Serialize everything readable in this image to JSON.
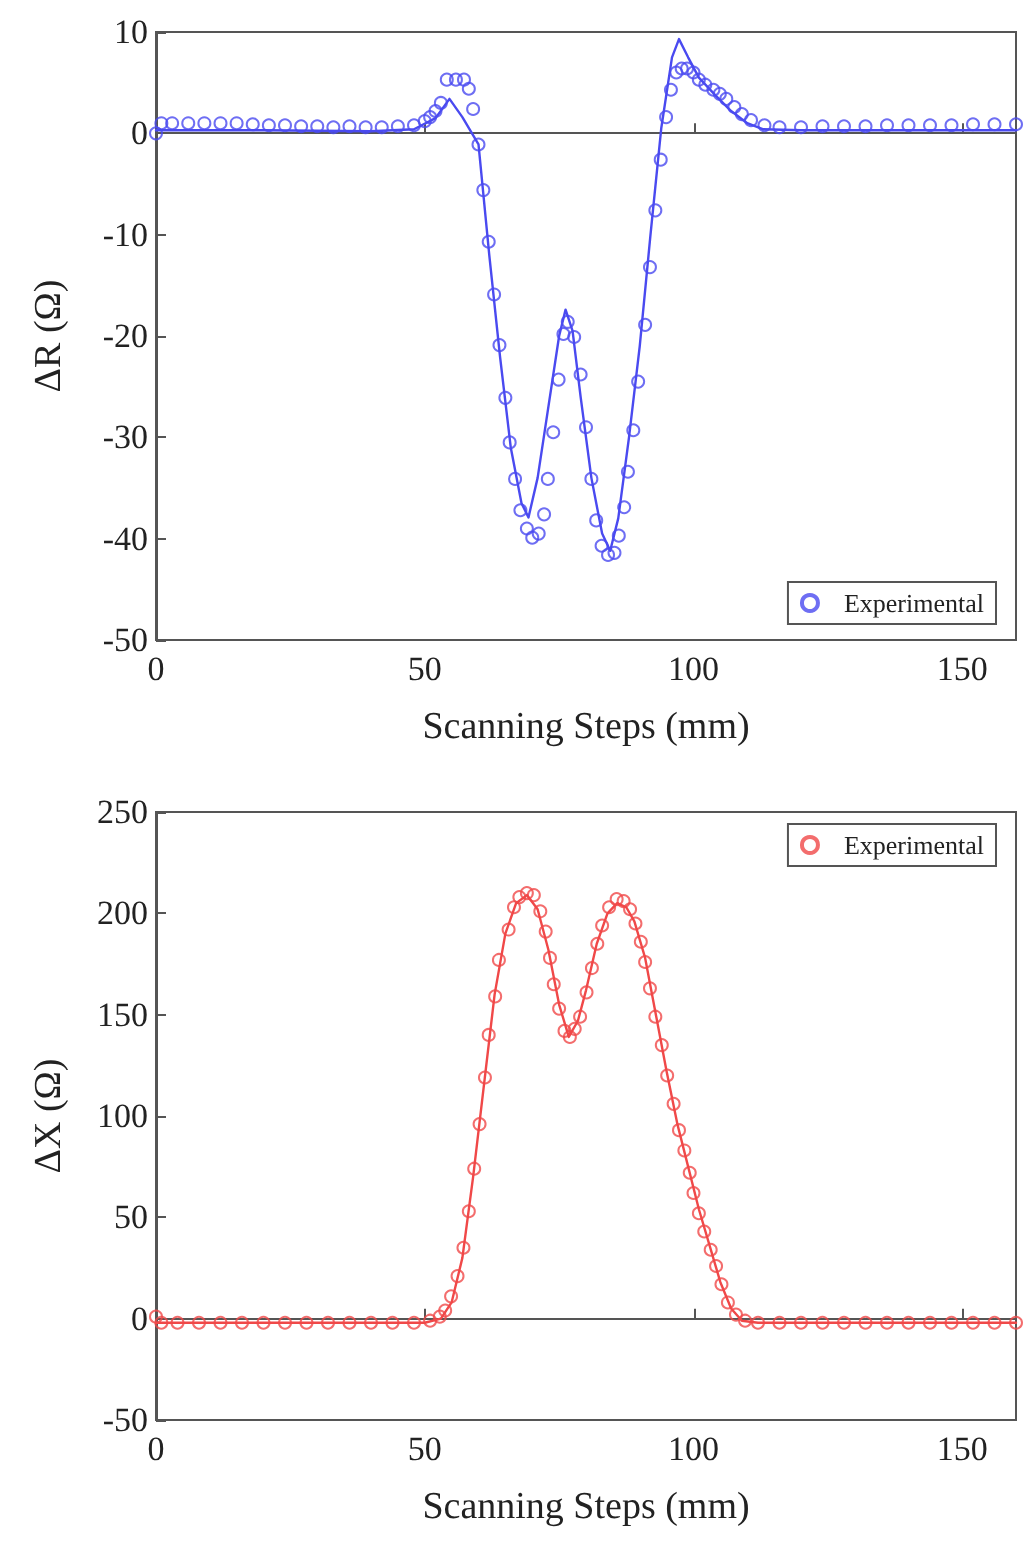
{
  "chart_data": [
    {
      "type": "line",
      "xlabel": "Scanning Steps (mm)",
      "ylabel": "ΔR (Ω)",
      "xlim": [
        0,
        160
      ],
      "xticks": [
        0,
        50,
        100,
        150
      ],
      "ylim": [
        -50,
        10
      ],
      "yticks": [
        -50,
        -40,
        -30,
        -20,
        -10,
        0,
        10
      ],
      "legend": "bottom right",
      "series": [
        {
          "color": "#4a4af0",
          "line_style": "solid",
          "marker": "none",
          "x": [
            0,
            20,
            40,
            48,
            52,
            54.6,
            57,
            60,
            62,
            64,
            66,
            68,
            69.3,
            71,
            73,
            75,
            76.2,
            77.5,
            79,
            81,
            83,
            84.5,
            86,
            88,
            90,
            92,
            94,
            96,
            97.3,
            99,
            101,
            104,
            107,
            110,
            113,
            120,
            160
          ],
          "values": [
            0.3,
            0.3,
            0.2,
            0.4,
            1.5,
            3.4,
            1.6,
            -1.1,
            -12,
            -22,
            -31,
            -36.5,
            -37.9,
            -34,
            -27,
            -20,
            -17.4,
            -19.5,
            -26,
            -34,
            -39.5,
            -41.2,
            -38,
            -30,
            -21,
            -10,
            0.5,
            7.5,
            9.3,
            7.5,
            5.5,
            3.8,
            2.2,
            1,
            0.4,
            0.3,
            0.3
          ]
        },
        {
          "type": "scatter",
          "name": "Experimental",
          "color": "#4a4af0",
          "marker": "circle",
          "x": [
            0,
            1,
            3,
            6,
            9,
            12,
            15,
            18,
            21,
            24,
            27,
            30,
            33,
            36,
            39,
            42,
            45,
            48,
            50,
            51,
            52,
            53,
            54.1,
            55.8,
            57.3,
            58.2,
            59,
            60,
            60.9,
            61.9,
            62.9,
            63.9,
            65,
            65.8,
            66.8,
            67.8,
            69,
            70,
            71.2,
            72.2,
            72.9,
            73.9,
            74.9,
            75.8,
            76.6,
            77.8,
            79,
            80,
            81,
            81.9,
            82.9,
            84.1,
            85.3,
            86.1,
            87.1,
            87.8,
            88.8,
            89.7,
            91,
            91.9,
            92.9,
            93.9,
            94.9,
            95.8,
            96.8,
            97.8,
            98.8,
            100,
            101,
            102.2,
            103.7,
            104.9,
            106.1,
            107.6,
            109,
            110.7,
            113.2,
            116,
            120,
            124,
            128,
            132,
            136,
            140,
            144,
            148,
            152,
            156,
            160
          ],
          "values": [
            0,
            1,
            1,
            1,
            1,
            1,
            1,
            0.9,
            0.8,
            0.8,
            0.7,
            0.7,
            0.6,
            0.7,
            0.6,
            0.6,
            0.7,
            0.8,
            1.2,
            1.6,
            2.2,
            3,
            5.3,
            5.3,
            5.3,
            4.4,
            2.4,
            -1.1,
            -5.6,
            -10.7,
            -15.9,
            -20.9,
            -26.1,
            -30.5,
            -34.1,
            -37.2,
            -39,
            -39.9,
            -39.5,
            -37.6,
            -34.1,
            -29.5,
            -24.3,
            -19.8,
            -18.6,
            -20.1,
            -23.8,
            -29,
            -34.1,
            -38.2,
            -40.7,
            -41.6,
            -41.4,
            -39.7,
            -36.9,
            -33.4,
            -29.3,
            -24.5,
            -18.9,
            -13.2,
            -7.6,
            -2.6,
            1.6,
            4.3,
            6,
            6.4,
            6.4,
            6,
            5.3,
            4.8,
            4.3,
            3.9,
            3.4,
            2.6,
            1.9,
            1.3,
            0.8,
            0.6,
            0.6,
            0.7,
            0.7,
            0.7,
            0.8,
            0.8,
            0.8,
            0.8,
            0.9,
            0.9,
            0.9
          ]
        }
      ]
    },
    {
      "type": "line",
      "xlabel": "Scanning Steps (mm)",
      "ylabel": "ΔX (Ω)",
      "xlim": [
        0,
        160
      ],
      "xticks": [
        0,
        50,
        100,
        150
      ],
      "ylim": [
        -50,
        250
      ],
      "yticks": [
        -50,
        0,
        50,
        100,
        150,
        200,
        250
      ],
      "legend": "top right",
      "series": [
        {
          "color": "#f04848",
          "line_style": "solid",
          "marker": "none",
          "x": [
            0,
            30,
            50,
            53,
            55,
            57,
            59,
            61,
            63,
            65,
            67,
            69,
            71,
            73,
            75,
            76.8,
            78.5,
            80,
            82,
            84,
            85.8,
            87.5,
            89,
            91,
            93,
            95,
            97,
            99,
            101,
            103,
            105,
            107,
            109,
            112,
            160
          ],
          "values": [
            -2,
            -2,
            -2,
            0,
            8,
            30,
            70,
            115,
            160,
            190,
            205,
            209,
            202,
            182,
            155,
            139,
            147,
            162,
            185,
            200,
            205,
            203,
            196,
            178,
            150,
            122,
            96,
            75,
            54,
            36,
            18,
            5,
            -1,
            -2,
            -2
          ]
        },
        {
          "type": "scatter",
          "name": "Experimental",
          "color": "#f04848",
          "marker": "circle",
          "x": [
            0,
            1,
            4,
            8,
            12,
            16,
            20,
            24,
            28,
            32,
            36,
            40,
            44,
            48,
            51,
            52.8,
            53.8,
            54.9,
            56.1,
            57.2,
            58.2,
            59.2,
            60.2,
            61.2,
            61.9,
            63.1,
            63.8,
            65.6,
            66.6,
            67.6,
            69,
            70.3,
            71.5,
            72.5,
            73.3,
            74,
            75,
            76,
            77,
            77.9,
            78.9,
            80.1,
            81.1,
            82.1,
            83,
            84.3,
            85.7,
            87,
            88.2,
            89.2,
            90.2,
            91,
            91.9,
            92.9,
            94.1,
            95.1,
            96.3,
            97.3,
            98.3,
            99.3,
            100,
            101,
            102,
            103.2,
            104.2,
            105.2,
            106.4,
            107.9,
            109.6,
            112,
            116,
            120,
            124,
            128,
            132,
            136,
            140,
            144,
            148,
            152,
            156,
            160
          ],
          "values": [
            1,
            -2,
            -2,
            -2,
            -2,
            -2,
            -2,
            -2,
            -2,
            -2,
            -2,
            -2,
            -2,
            -2,
            -1,
            1,
            4,
            11,
            21,
            35,
            53,
            74,
            96,
            119,
            140,
            159,
            177,
            192,
            203,
            208,
            210,
            209,
            201,
            191,
            178,
            165,
            153,
            142,
            139,
            143,
            149,
            161,
            173,
            185,
            194,
            203,
            207,
            206,
            202,
            195,
            186,
            176,
            163,
            149,
            135,
            120,
            106,
            93,
            83,
            72,
            62,
            52,
            43,
            34,
            26,
            17,
            8,
            2,
            -1,
            -2,
            -2,
            -2,
            -2,
            -2,
            -2,
            -2,
            -2,
            -2,
            -2,
            -2,
            -2,
            -2
          ]
        }
      ]
    }
  ]
}
